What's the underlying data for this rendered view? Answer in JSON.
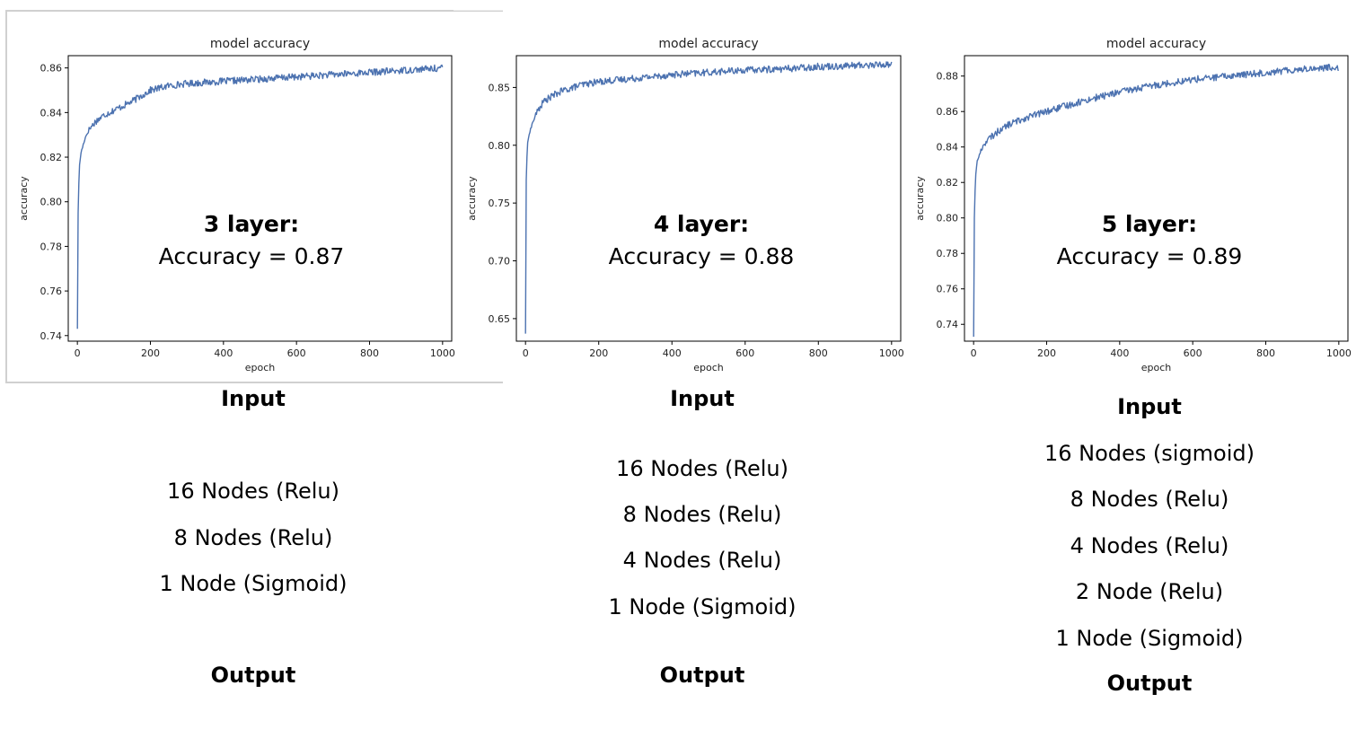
{
  "panels": [
    {
      "overlay": {
        "title": "3 layer:",
        "accuracy_text": "Accuracy = 0.87"
      },
      "architecture": {
        "input_label": "Input",
        "layers": [
          "16 Nodes (Relu)",
          "8 Nodes (Relu)",
          "1 Node (Sigmoid)"
        ],
        "output_label": "Output"
      }
    },
    {
      "overlay": {
        "title": "4 layer:",
        "accuracy_text": "Accuracy = 0.88"
      },
      "architecture": {
        "input_label": "Input",
        "layers": [
          "16 Nodes (Relu)",
          "8 Nodes (Relu)",
          "4 Nodes (Relu)",
          "1 Node (Sigmoid)"
        ],
        "output_label": "Output"
      }
    },
    {
      "overlay": {
        "title": "5 layer:",
        "accuracy_text": "Accuracy = 0.89"
      },
      "architecture": {
        "input_label": "Input",
        "layers": [
          "16 Nodes (sigmoid)",
          "8 Nodes (Relu)",
          "4 Nodes (Relu)",
          "2 Node (Relu)",
          "1 Node (Sigmoid)"
        ],
        "output_label": "Output"
      }
    }
  ],
  "chart_data": [
    {
      "type": "line",
      "title": "model accuracy",
      "xlabel": "epoch",
      "ylabel": "accuracy",
      "xlim": [
        -25,
        1025
      ],
      "ylim": [
        0.7375,
        0.8655
      ],
      "xticks": [
        0,
        200,
        400,
        600,
        800,
        1000
      ],
      "yticks": [
        0.74,
        0.76,
        0.78,
        0.8,
        0.82,
        0.84,
        0.86
      ],
      "ytick_labels": [
        "0.74",
        "0.76",
        "0.78",
        "0.80",
        "0.82",
        "0.84",
        "0.86"
      ],
      "grid": false,
      "color": "#4c72b0",
      "series": [
        {
          "x": [
            0,
            2,
            5,
            10,
            20,
            30,
            50,
            75,
            100,
            150,
            200,
            250,
            300,
            400,
            500,
            600,
            700,
            800,
            900,
            1000
          ],
          "y": [
            0.743,
            0.795,
            0.815,
            0.822,
            0.828,
            0.832,
            0.836,
            0.839,
            0.841,
            0.845,
            0.85,
            0.852,
            0.853,
            0.854,
            0.855,
            0.856,
            0.857,
            0.858,
            0.859,
            0.86
          ]
        }
      ]
    },
    {
      "type": "line",
      "title": "model accuracy",
      "xlabel": "epoch",
      "ylabel": "accuracy",
      "xlim": [
        -25,
        1025
      ],
      "ylim": [
        0.6305,
        0.8775
      ],
      "xticks": [
        0,
        200,
        400,
        600,
        800,
        1000
      ],
      "yticks": [
        0.65,
        0.7,
        0.75,
        0.8,
        0.85
      ],
      "ytick_labels": [
        "0.65",
        "0.70",
        "0.75",
        "0.80",
        "0.85"
      ],
      "grid": false,
      "color": "#4c72b0",
      "series": [
        {
          "x": [
            0,
            2,
            5,
            10,
            20,
            30,
            50,
            75,
            100,
            150,
            200,
            300,
            400,
            500,
            600,
            700,
            800,
            900,
            1000
          ],
          "y": [
            0.637,
            0.77,
            0.8,
            0.81,
            0.82,
            0.828,
            0.838,
            0.843,
            0.847,
            0.852,
            0.855,
            0.858,
            0.861,
            0.863,
            0.865,
            0.866,
            0.868,
            0.869,
            0.87
          ]
        }
      ]
    },
    {
      "type": "line",
      "title": "model accuracy",
      "xlabel": "epoch",
      "ylabel": "accuracy",
      "xlim": [
        -25,
        1025
      ],
      "ylim": [
        0.7305,
        0.8915
      ],
      "xticks": [
        0,
        200,
        400,
        600,
        800,
        1000
      ],
      "yticks": [
        0.74,
        0.76,
        0.78,
        0.8,
        0.82,
        0.84,
        0.86,
        0.88
      ],
      "ytick_labels": [
        "0.74",
        "0.76",
        "0.78",
        "0.80",
        "0.82",
        "0.84",
        "0.86",
        "0.88"
      ],
      "grid": false,
      "color": "#4c72b0",
      "series": [
        {
          "x": [
            0,
            2,
            5,
            10,
            20,
            30,
            50,
            75,
            100,
            150,
            200,
            300,
            400,
            500,
            600,
            700,
            800,
            900,
            1000
          ],
          "y": [
            0.733,
            0.8,
            0.823,
            0.832,
            0.838,
            0.842,
            0.846,
            0.85,
            0.853,
            0.857,
            0.86,
            0.866,
            0.871,
            0.875,
            0.878,
            0.88,
            0.882,
            0.884,
            0.885
          ]
        }
      ]
    }
  ]
}
